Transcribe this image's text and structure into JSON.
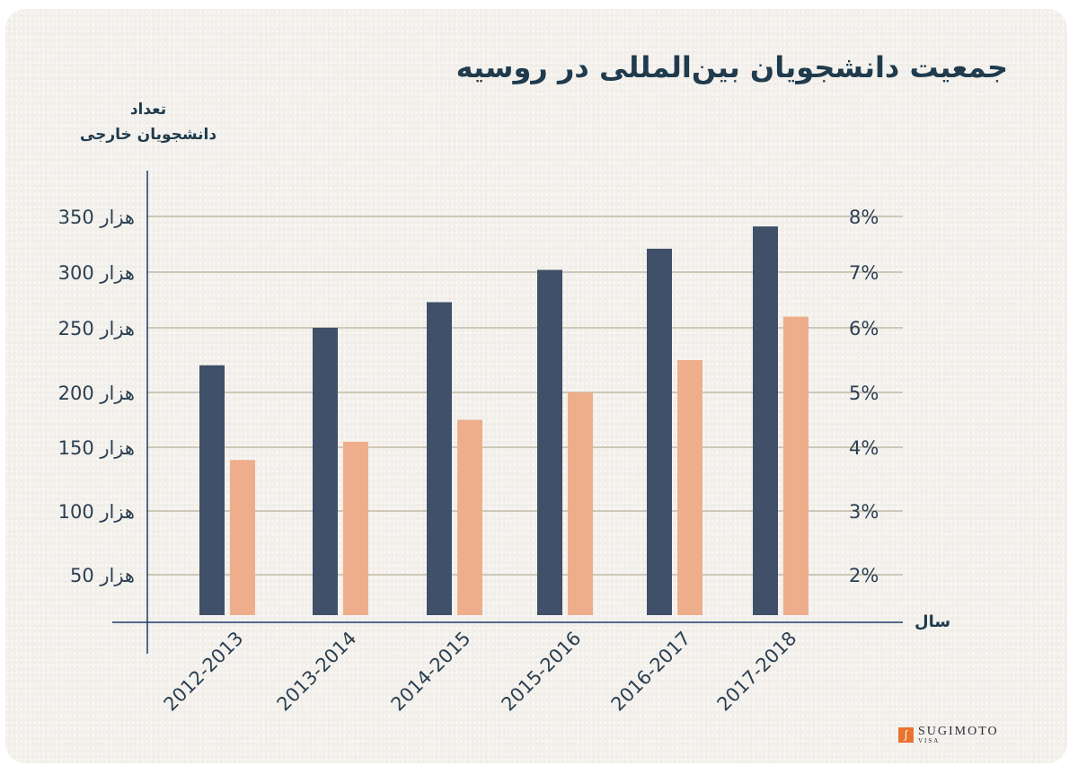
{
  "chart_data": {
    "type": "bar",
    "title": "جمعیت دانشجویان بین‌المللی در روسیه",
    "ylabel_line1": "تعداد",
    "ylabel_line2": "دانشجویان خارجی",
    "xlabel": "سال",
    "categories": [
      "2012-2013",
      "2013-2014",
      "2014-2015",
      "2015-2016",
      "2016-2017",
      "2017-2018"
    ],
    "left_axis": {
      "ticks": [
        50,
        100,
        150,
        200,
        250,
        300,
        350
      ],
      "tick_labels": [
        "50 هزار",
        "100 هزار",
        "150 هزار",
        "200 هزار",
        "250 هزار",
        "300 هزار",
        "350 هزار"
      ],
      "unit": "thousand"
    },
    "right_axis": {
      "ticks": [
        2,
        3,
        4,
        5,
        6,
        7,
        8
      ],
      "tick_labels": [
        "2%",
        "3%",
        "4%",
        "5%",
        "6%",
        "7%",
        "8%"
      ]
    },
    "series": [
      {
        "axis": "left",
        "color": "#3f5068",
        "values": [
          221,
          250,
          273,
          302,
          321,
          341
        ]
      },
      {
        "axis": "right",
        "color": "#eeae8c",
        "values": [
          3.8,
          4.1,
          4.5,
          5.0,
          5.5,
          6.2
        ]
      }
    ],
    "grid": true,
    "grid_color": "#cfc8b8",
    "axis_color": "#1f3b6d"
  },
  "logo": {
    "name": "SUGIMOTO",
    "sub": "VISA"
  }
}
